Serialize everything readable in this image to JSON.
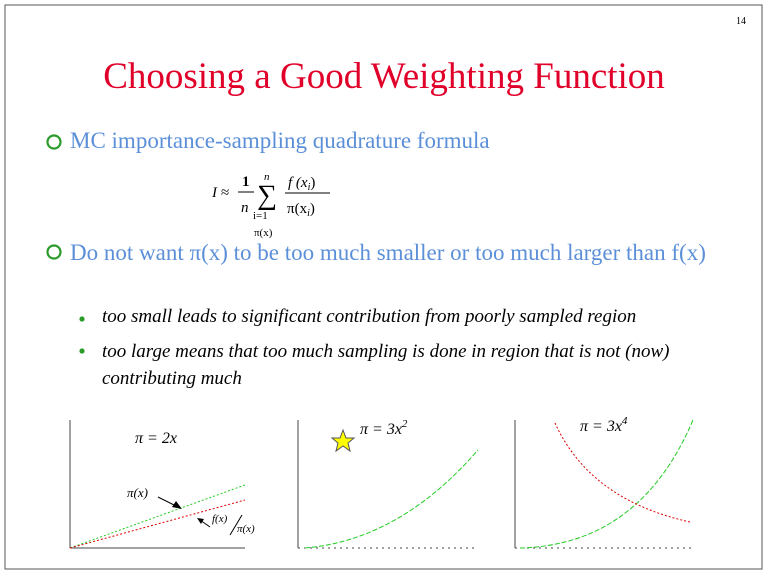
{
  "page_number": "14",
  "title": "Choosing a Good Weighting Function",
  "bullets": [
    {
      "text": "MC importance-sampling quadrature formula"
    },
    {
      "text": "Do not want π(x) to be too much smaller or too much larger than f(x)",
      "sub": [
        "too small leads to significant contribution from poorly sampled region",
        "too large means that too much sampling is done in region that is not (now) contributing much"
      ]
    }
  ],
  "formula": {
    "lhs": "I ≈",
    "one": "1",
    "n": "n",
    "sum_top": "n",
    "sum_symbol": "∑",
    "sum_bottom": "i=1",
    "sum_under": "π(x)",
    "numerator": "f (x",
    "denominator": "π(x",
    "index": "i",
    "close": ")"
  },
  "plots": [
    {
      "label": "π = 2x",
      "curve_label": "π(x)",
      "ratio_top": "f(x)",
      "ratio_bottom": "π(x)"
    },
    {
      "label": "π = 3x",
      "exponent": "2"
    },
    {
      "label": "π = 3x",
      "exponent": "4"
    }
  ]
}
